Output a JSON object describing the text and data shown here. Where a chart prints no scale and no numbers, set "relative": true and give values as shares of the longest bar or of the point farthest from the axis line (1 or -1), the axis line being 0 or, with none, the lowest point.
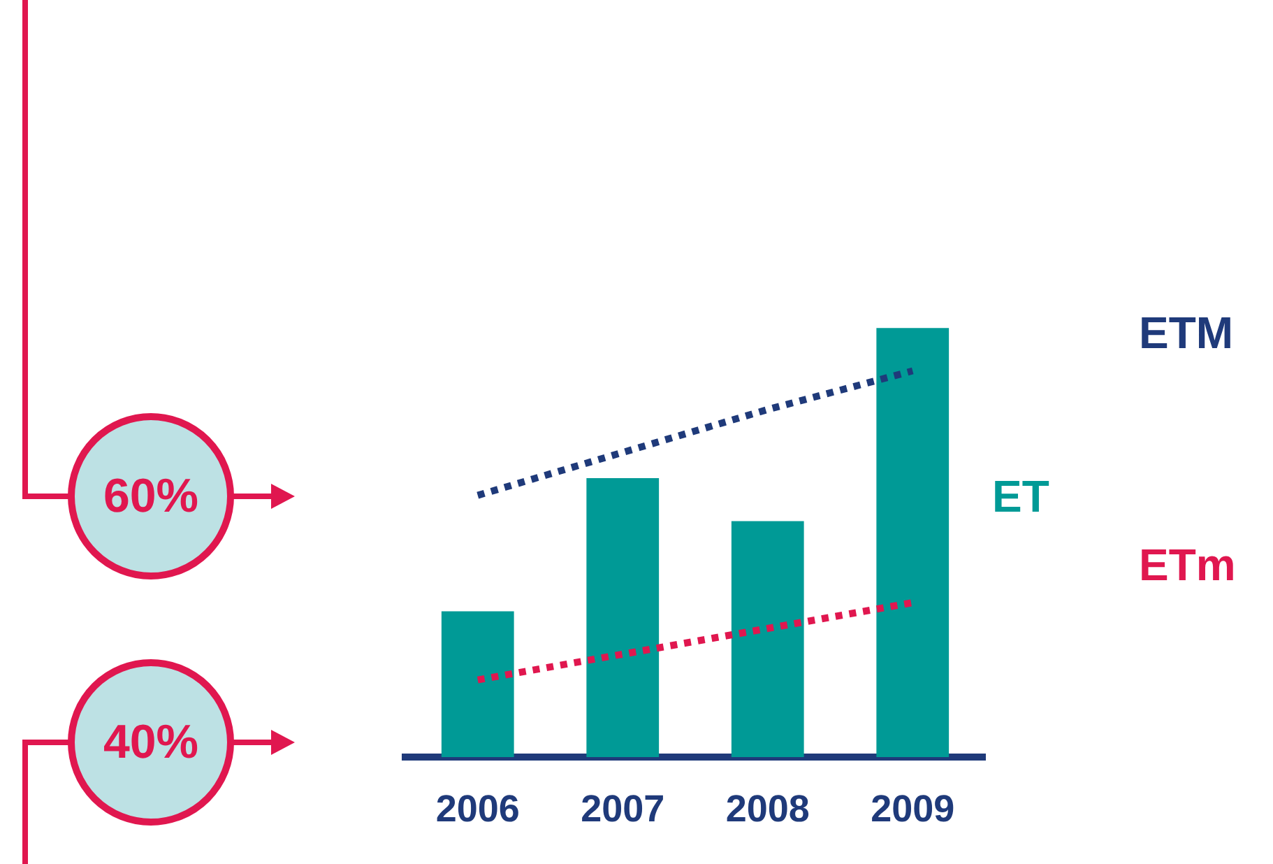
{
  "chart_data": {
    "type": "bar",
    "relative": true,
    "categories": [
      "2006",
      "2007",
      "2008",
      "2009"
    ],
    "series": [
      {
        "name": "ET",
        "color": "#009a96",
        "values": [
          0.34,
          0.65,
          0.55,
          1
        ]
      },
      {
        "name": "ETM",
        "type": "line",
        "color": "#1f3a7a",
        "line_style": "dotted",
        "values": [
          0.61,
          0.71,
          0.81,
          0.9
        ]
      },
      {
        "name": "ETm",
        "type": "line",
        "color": "#e0174f",
        "line_style": "dotted",
        "values": [
          0.18,
          0.24,
          0.3,
          0.36
        ]
      }
    ],
    "annotations": [
      "60%",
      "40%"
    ],
    "legend": false,
    "grid": false
  }
}
